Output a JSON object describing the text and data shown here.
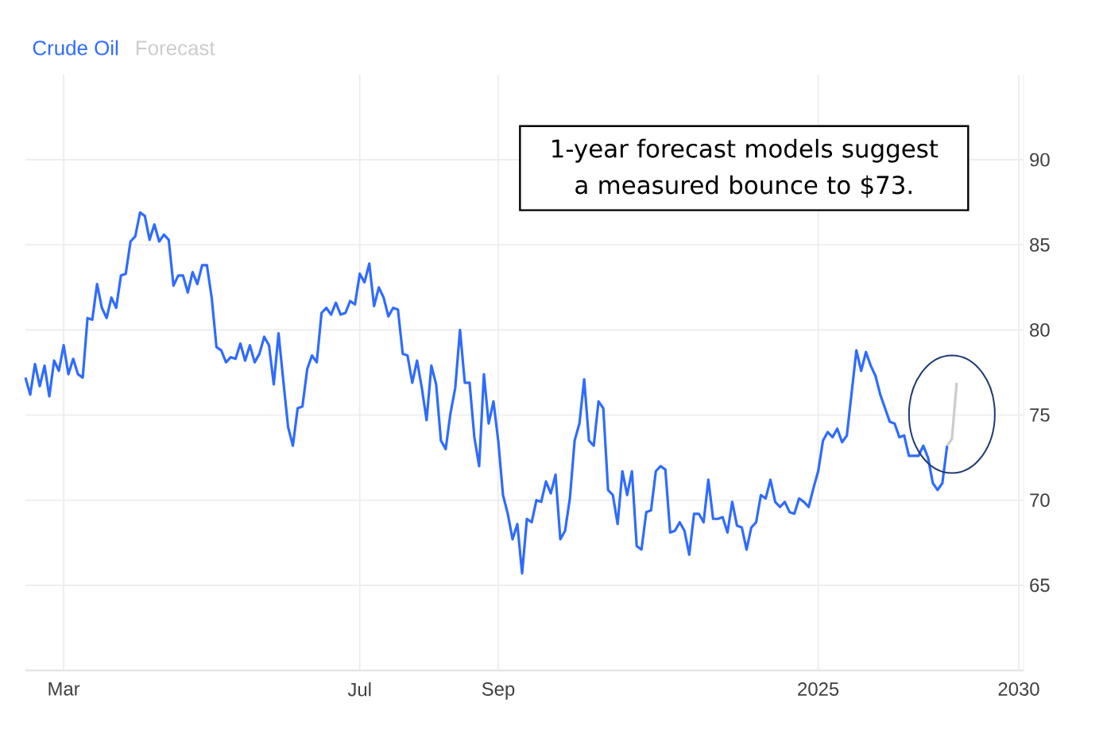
{
  "chart_data": {
    "type": "line",
    "legend": "top left",
    "grid": true,
    "marker": "none",
    "line_style": "solid",
    "categories": [
      null,
      null,
      null,
      null,
      null,
      null,
      null,
      null,
      "Mar",
      null,
      null,
      null,
      null,
      null,
      null,
      null,
      null,
      null,
      null,
      null,
      null,
      null,
      null,
      null,
      null,
      null,
      null,
      null,
      null,
      null,
      null,
      null,
      null,
      null,
      null,
      null,
      null,
      null,
      null,
      null,
      null,
      null,
      null,
      null,
      null,
      null,
      null,
      null,
      null,
      null,
      null,
      null,
      null,
      null,
      null,
      null,
      null,
      null,
      null,
      null,
      null,
      null,
      null,
      null,
      null,
      null,
      null,
      null,
      null,
      null,
      "Jul",
      null,
      null,
      null,
      null,
      null,
      null,
      null,
      null,
      null,
      null,
      null,
      null,
      null,
      null,
      null,
      null,
      null,
      null,
      null,
      null,
      null,
      null,
      null,
      null,
      null,
      null,
      null,
      null,
      "Sep",
      null,
      null,
      null,
      null,
      null,
      null,
      null,
      null,
      null,
      null,
      null,
      null,
      null,
      null,
      null,
      null,
      null,
      null,
      null,
      null,
      null,
      null,
      null,
      null,
      null,
      null,
      null,
      null,
      null,
      null,
      null,
      null,
      null,
      null,
      null,
      null,
      null,
      null,
      null,
      null,
      null,
      null,
      null,
      null,
      null,
      null,
      null,
      null,
      null,
      null,
      null,
      null,
      null,
      null,
      null,
      null,
      null,
      null,
      null,
      null,
      null,
      null,
      null,
      null,
      null,
      null,
      "2025",
      null,
      null,
      null,
      null,
      null,
      null,
      null,
      null,
      null,
      null,
      null,
      null,
      null,
      null,
      null,
      null,
      null,
      null,
      null,
      null,
      null,
      null,
      null,
      null,
      null,
      null,
      null,
      null,
      null,
      null,
      null,
      null,
      null,
      null,
      null,
      null,
      null,
      null,
      null,
      null,
      null,
      "2030"
    ],
    "ylim": [
      60,
      95
    ],
    "yticks": [
      65,
      70,
      75,
      80,
      85,
      90
    ],
    "annotations": [
      "1-year forecast models suggest a measured bounce to $73."
    ],
    "series": [
      {
        "name": "Crude Oil",
        "color": "#2f6bff",
        "values": [
          77.2,
          76.2,
          78.0,
          76.7,
          77.9,
          76.1,
          78.2,
          77.6,
          79.1,
          77.4,
          78.3,
          77.4,
          77.2,
          80.7,
          80.6,
          82.7,
          81.3,
          80.7,
          81.9,
          81.3,
          83.2,
          83.3,
          85.2,
          85.5,
          86.9,
          86.7,
          85.3,
          86.2,
          85.2,
          85.6,
          85.3,
          82.6,
          83.2,
          83.2,
          82.2,
          83.4,
          82.7,
          83.8,
          83.8,
          81.9,
          79.0,
          78.8,
          78.1,
          78.4,
          78.3,
          79.2,
          78.2,
          79.1,
          78.1,
          78.6,
          79.6,
          79.1,
          76.8,
          79.8,
          77.0,
          74.3,
          73.2,
          75.4,
          75.5,
          77.7,
          78.5,
          78.1,
          81.0,
          81.3,
          80.9,
          81.6,
          80.9,
          81.0,
          81.7,
          81.5,
          83.3,
          82.8,
          83.9,
          81.4,
          82.5,
          81.9,
          80.8,
          81.3,
          81.2,
          78.6,
          78.5,
          76.9,
          78.2,
          76.6,
          74.7,
          77.9,
          76.8,
          73.5,
          73.0,
          75.1,
          76.6,
          80.0,
          76.9,
          76.9,
          73.7,
          72.0,
          77.4,
          74.5,
          75.8,
          73.5,
          70.3,
          69.2,
          67.7,
          68.6,
          65.7,
          68.9,
          68.7,
          70.0,
          69.9,
          71.1,
          70.4,
          71.5,
          67.7,
          68.2,
          70.1,
          73.5,
          74.5,
          77.1,
          73.5,
          73.2,
          75.8,
          75.4,
          70.6,
          70.3,
          68.6,
          71.7,
          70.3,
          71.7,
          67.3,
          67.1,
          69.3,
          69.4,
          71.7,
          72.0,
          71.8,
          68.1,
          68.2,
          68.7,
          68.2,
          66.8,
          69.2,
          69.2,
          68.7,
          71.2,
          68.9,
          68.9,
          69.0,
          68.1,
          69.9,
          68.5,
          68.4,
          67.1,
          68.4,
          68.7,
          70.3,
          70.1,
          71.2,
          69.9,
          69.6,
          69.9,
          69.3,
          69.2,
          70.1,
          69.9,
          69.6,
          70.7,
          71.7,
          73.5,
          74.0,
          73.7,
          74.2,
          73.4,
          73.8,
          76.3,
          78.8,
          77.6,
          78.7,
          77.9,
          77.3,
          76.2,
          75.4,
          74.6,
          74.5,
          73.7,
          73.8,
          72.6,
          72.6,
          72.6,
          73.2,
          72.5,
          71.0,
          70.6,
          71.0,
          73.2,
          null,
          null,
          null,
          null,
          null,
          null,
          null,
          null,
          null,
          null,
          null,
          null,
          null,
          null,
          null
        ]
      },
      {
        "name": "Forecast",
        "color": "#cccccc",
        "values": [
          null,
          null,
          null,
          null,
          null,
          null,
          null,
          null,
          null,
          null,
          null,
          null,
          null,
          null,
          null,
          null,
          null,
          null,
          null,
          null,
          null,
          null,
          null,
          null,
          null,
          null,
          null,
          null,
          null,
          null,
          null,
          null,
          null,
          null,
          null,
          null,
          null,
          null,
          null,
          null,
          null,
          null,
          null,
          null,
          null,
          null,
          null,
          null,
          null,
          null,
          null,
          null,
          null,
          null,
          null,
          null,
          null,
          null,
          null,
          null,
          null,
          null,
          null,
          null,
          null,
          null,
          null,
          null,
          null,
          null,
          null,
          null,
          null,
          null,
          null,
          null,
          null,
          null,
          null,
          null,
          null,
          null,
          null,
          null,
          null,
          null,
          null,
          null,
          null,
          null,
          null,
          null,
          null,
          null,
          null,
          null,
          null,
          null,
          null,
          null,
          null,
          null,
          null,
          null,
          null,
          null,
          null,
          null,
          null,
          null,
          null,
          null,
          null,
          null,
          null,
          null,
          null,
          null,
          null,
          null,
          null,
          null,
          null,
          null,
          null,
          null,
          null,
          null,
          null,
          null,
          null,
          null,
          null,
          null,
          null,
          null,
          null,
          null,
          null,
          null,
          null,
          null,
          null,
          null,
          null,
          null,
          null,
          null,
          null,
          null,
          null,
          null,
          null,
          null,
          null,
          null,
          null,
          null,
          null,
          null,
          null,
          null,
          null,
          null,
          null,
          null,
          null,
          null,
          null,
          null,
          null,
          null,
          null,
          null,
          null,
          null,
          null,
          null,
          null,
          null,
          null,
          null,
          null,
          null,
          null,
          null,
          null,
          null,
          null,
          null,
          null,
          null,
          null,
          73.2,
          73.6,
          76.9,
          null,
          null,
          null,
          null,
          null,
          null,
          null,
          null,
          null,
          null,
          null,
          null,
          null
        ]
      }
    ]
  }
}
